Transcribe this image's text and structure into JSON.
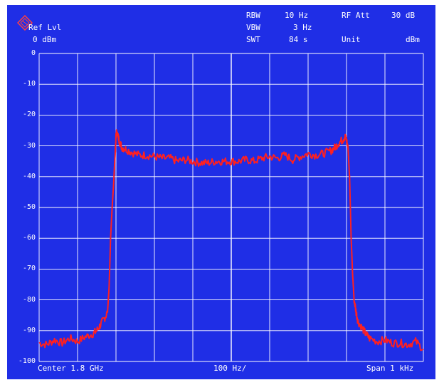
{
  "header": {
    "ref_lvl_label": "Ref Lvl",
    "ref_lvl_value": "0 dBm",
    "rbw_label": "RBW",
    "rbw_value": "10 Hz",
    "vbw_label": "VBW",
    "vbw_value": "3 Hz",
    "swt_label": "SWT",
    "swt_value": "84 s",
    "rf_att_label": "RF Att",
    "rf_att_value": "30 dB",
    "unit_label": "Unit",
    "unit_value": "dBm"
  },
  "footer": {
    "center": "Center 1.8 GHz",
    "per_div": "100 Hz/",
    "span": "Span 1 kHz"
  },
  "colors": {
    "background": "#1f2ee6",
    "grid": "#ffffff",
    "trace": "#ff2020",
    "text": "#ffffff"
  },
  "chart_data": {
    "type": "line",
    "title": "",
    "xlabel": "",
    "ylabel": "",
    "x_unit": "Hz offset from center",
    "xlim": [
      -500,
      500
    ],
    "ylim": [
      -100,
      0
    ],
    "y_ticks": [
      "0",
      "-10",
      "-20",
      "-30",
      "-40",
      "-50",
      "-60",
      "-70",
      "-80",
      "-90",
      "-100"
    ],
    "x_divisions": 10,
    "y_divisions": 10,
    "grid": true,
    "series": [
      {
        "name": "",
        "x": [
          -500,
          -480,
          -460,
          -440,
          -420,
          -400,
          -380,
          -360,
          -350,
          -340,
          -330,
          -322,
          -318,
          -314,
          -310,
          -306,
          -302,
          -300,
          -298,
          -292,
          -285,
          -275,
          -260,
          -240,
          -220,
          -200,
          -180,
          -160,
          -140,
          -120,
          -100,
          -80,
          -60,
          -40,
          -20,
          0,
          20,
          40,
          60,
          80,
          100,
          120,
          140,
          160,
          180,
          200,
          220,
          240,
          260,
          270,
          280,
          290,
          296,
          300,
          304,
          308,
          312,
          316,
          320,
          325,
          330,
          340,
          350,
          360,
          380,
          400,
          420,
          440,
          460,
          480,
          500
        ],
        "y": [
          -94,
          -94.5,
          -93,
          -94,
          -92.5,
          -93.5,
          -92,
          -91,
          -90,
          -88,
          -86,
          -84,
          -76,
          -60,
          -50,
          -42,
          -32,
          -27,
          -25.5,
          -28,
          -30.5,
          -31,
          -32,
          -33,
          -33,
          -33.5,
          -34,
          -34,
          -35,
          -34.5,
          -35,
          -35.5,
          -35.5,
          -35,
          -35,
          -35,
          -35,
          -34.5,
          -35,
          -34,
          -33.5,
          -34,
          -33,
          -34.5,
          -33.5,
          -32.5,
          -33,
          -32.5,
          -31.5,
          -30.5,
          -29,
          -28,
          -27,
          -28,
          -31,
          -40,
          -60,
          -72,
          -80,
          -84,
          -87,
          -89,
          -91,
          -92.5,
          -93.5,
          -93,
          -94,
          -94,
          -94.5,
          -93.5,
          -96
        ]
      }
    ]
  }
}
